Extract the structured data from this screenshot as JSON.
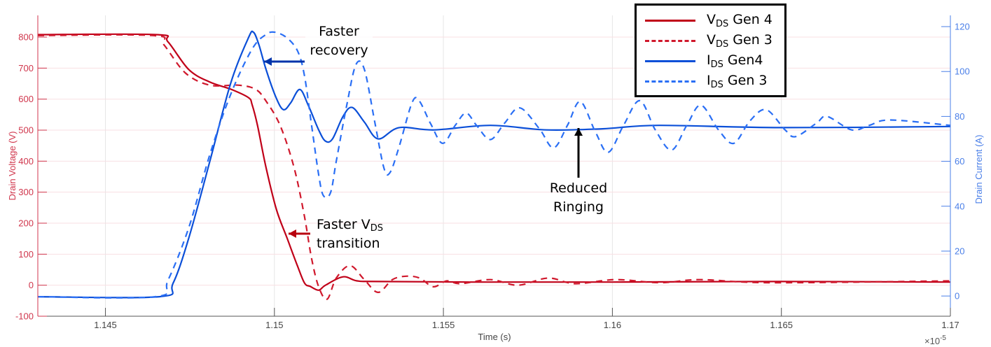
{
  "chart_data": {
    "type": "line",
    "xlabel": "Time (s)",
    "x_multiplier": "×10",
    "x_multiplier_exp": "-5",
    "xlim": [
      1.143,
      1.17
    ],
    "xticks": [
      1.145,
      1.15,
      1.155,
      1.16,
      1.165,
      1.17
    ],
    "xtick_labels": [
      "1.145",
      "1.15",
      "1.155",
      "1.16",
      "1.165",
      "1.17"
    ],
    "y_left": {
      "label": "Drain Voltage (V)",
      "lim": [
        -100,
        870
      ],
      "ticks": [
        -100,
        0,
        100,
        200,
        300,
        400,
        500,
        600,
        700,
        800
      ],
      "color": "#d0364c"
    },
    "y_right": {
      "label": "Drain Current (A)",
      "lim": [
        -9,
        125
      ],
      "ticks": [
        0,
        20,
        40,
        60,
        80,
        100,
        120
      ],
      "color": "#4a7fe8"
    },
    "grid": true,
    "legend_placement": "top-right",
    "series": [
      {
        "name_main": "V",
        "name_sub": "DS",
        "name_rest": " Gen 4",
        "axis": "left",
        "color": "#c00018",
        "style": "solid",
        "x": [
          1.143,
          1.1465,
          1.14685,
          1.14747,
          1.14809,
          1.14871,
          1.14923,
          1.14934,
          1.1495,
          1.14975,
          1.15006,
          1.15037,
          1.15068,
          1.15089,
          1.15106,
          1.15131,
          1.15151,
          1.15203,
          1.15245,
          1.15307,
          1.156,
          1.16,
          1.165,
          1.17
        ],
        "y": [
          808,
          808,
          785,
          695,
          655,
          632,
          605,
          582,
          515,
          380,
          244,
          153,
          63,
          7,
          -4,
          -16,
          0,
          27,
          14,
          12,
          10,
          10,
          12,
          10
        ]
      },
      {
        "name_main": "V",
        "name_sub": "DS",
        "name_rest": " Gen 3",
        "axis": "left",
        "color": "#d0182c",
        "style": "dashed",
        "x": [
          1.143,
          1.14643,
          1.14674,
          1.14737,
          1.14809,
          1.14892,
          1.14944,
          1.14975,
          1.15017,
          1.15058,
          1.15089,
          1.1511,
          1.15131,
          1.15156,
          1.15183,
          1.15224,
          1.15266,
          1.15307,
          1.15349,
          1.1539,
          1.1543,
          1.1547,
          1.1551,
          1.1555,
          1.1564,
          1.1572,
          1.1581,
          1.1589,
          1.1601,
          1.1614,
          1.1626,
          1.1647,
          1.17
        ],
        "y": [
          805,
          805,
          774,
          684,
          645,
          645,
          632,
          594,
          515,
          380,
          221,
          86,
          -5,
          -45,
          23,
          63,
          18,
          -23,
          18,
          29,
          23,
          -5,
          14,
          5,
          18,
          0,
          23,
          5,
          18,
          8,
          18,
          8,
          14
        ]
      },
      {
        "name_main": "I",
        "name_sub": "DS",
        "name_rest": " Gen4",
        "axis": "right",
        "color": "#0b4fd8",
        "style": "solid",
        "x": [
          1.143,
          1.1466,
          1.147,
          1.14747,
          1.14809,
          1.14871,
          1.14923,
          1.14938,
          1.14954,
          1.14975,
          1.15006,
          1.15027,
          1.15048,
          1.15075,
          1.151,
          1.15131,
          1.15151,
          1.15172,
          1.15203,
          1.1523,
          1.15266,
          1.15307,
          1.15369,
          1.15473,
          1.15639,
          1.15805,
          1.15971,
          1.16137,
          1.165,
          1.17
        ],
        "y": [
          -0.3,
          -0.3,
          5.6,
          26,
          60,
          95,
          115,
          117.5,
          112,
          101,
          88,
          83,
          86,
          92,
          85,
          74,
          69,
          70,
          80,
          84,
          77.5,
          70,
          75,
          74,
          76,
          74,
          74.5,
          76,
          75,
          75.5
        ]
      },
      {
        "name_main": "I",
        "name_sub": "DS",
        "name_rest": " Gen 3",
        "axis": "right",
        "color": "#2a6ff5",
        "style": "dashed",
        "x": [
          1.143,
          1.14647,
          1.14685,
          1.14747,
          1.14809,
          1.14871,
          1.14934,
          1.14975,
          1.15002,
          1.15037,
          1.15069,
          1.15089,
          1.1511,
          1.15131,
          1.15145,
          1.15166,
          1.15183,
          1.15214,
          1.15241,
          1.15266,
          1.15297,
          1.15324,
          1.15342,
          1.15369,
          1.15407,
          1.15428,
          1.15463,
          1.15498,
          1.15535,
          1.15567,
          1.15598,
          1.15639,
          1.15681,
          1.15726,
          1.15784,
          1.15826,
          1.15867,
          1.15905,
          1.1595,
          1.15988,
          1.16033,
          1.16081,
          1.16127,
          1.16175,
          1.1622,
          1.16262,
          1.16314,
          1.16359,
          1.16407,
          1.16455,
          1.16511,
          1.16542,
          1.16604,
          1.16635,
          1.16708,
          1.1676,
          1.16822,
          1.17
        ],
        "y": [
          -0.3,
          -0.3,
          7,
          30.6,
          63,
          90,
          110,
          116.5,
          117.5,
          115,
          109,
          98,
          76,
          54,
          44.7,
          46,
          60,
          85,
          103,
          101,
          77.5,
          57,
          55,
          66.5,
          86,
          87,
          76.5,
          68,
          76,
          81.5,
          76,
          69.7,
          77,
          83.8,
          74.5,
          66,
          76,
          86.6,
          73,
          64,
          76,
          87,
          74,
          65,
          76,
          85,
          74,
          68,
          78,
          83,
          74,
          71,
          77,
          80,
          74,
          76,
          78.4,
          76
        ]
      }
    ],
    "annotations": [
      {
        "line1": "Faster",
        "line2": "recovery",
        "arrow_color": "#0033aa"
      },
      {
        "line1_main": "Faster V",
        "line1_sub": "DS",
        "line2": "transition",
        "arrow_color": "#b8000f"
      },
      {
        "line1": "Reduced",
        "line2": "Ringing",
        "arrow_color": "#000000"
      }
    ]
  }
}
